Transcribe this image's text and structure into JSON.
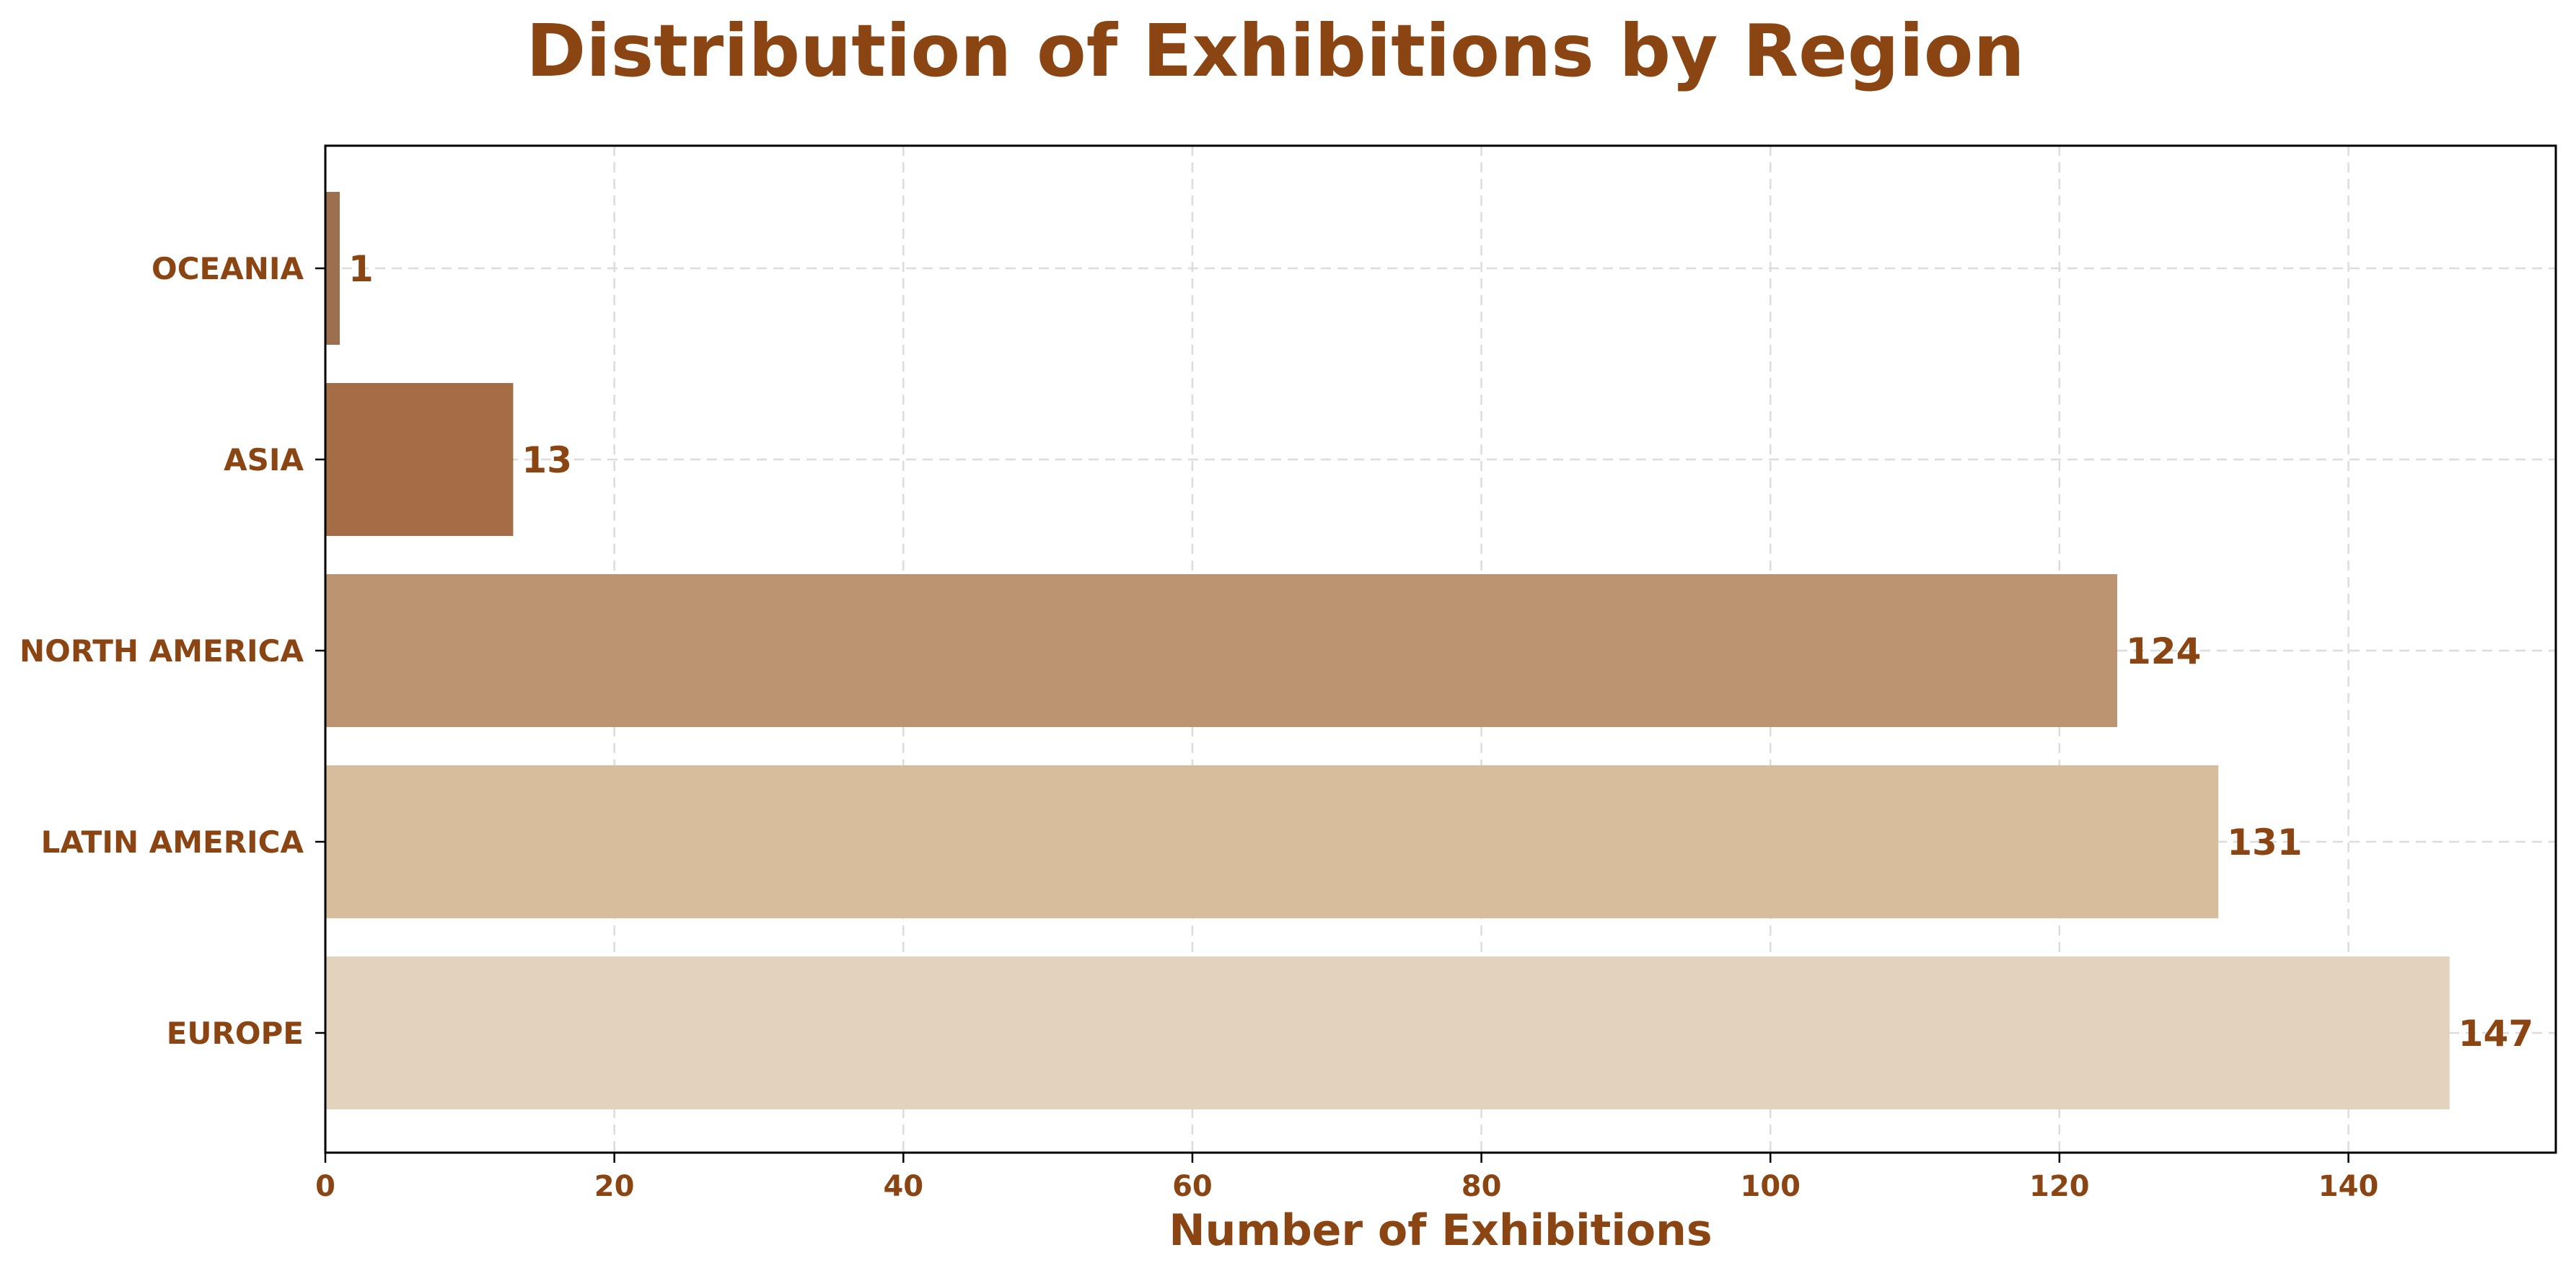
{
  "chart_data": {
    "type": "bar",
    "orientation": "horizontal",
    "title": "Distribution of Exhibitions by Region",
    "xlabel": "Number of Exhibitions",
    "ylabel": "",
    "categories": [
      "EUROPE",
      "LATIN AMERICA",
      "NORTH AMERICA",
      "ASIA",
      "OCEANIA"
    ],
    "values": [
      147,
      131,
      124,
      13,
      1
    ],
    "colors": [
      "#E3D3BC",
      "#D8BD9C",
      "#BC9472",
      "#A56D45",
      "#9C704E"
    ],
    "xlim": [
      0,
      154.35
    ],
    "xticks": [
      0,
      20,
      40,
      60,
      80,
      100,
      120,
      140
    ],
    "grid": true,
    "value_labels": true
  }
}
